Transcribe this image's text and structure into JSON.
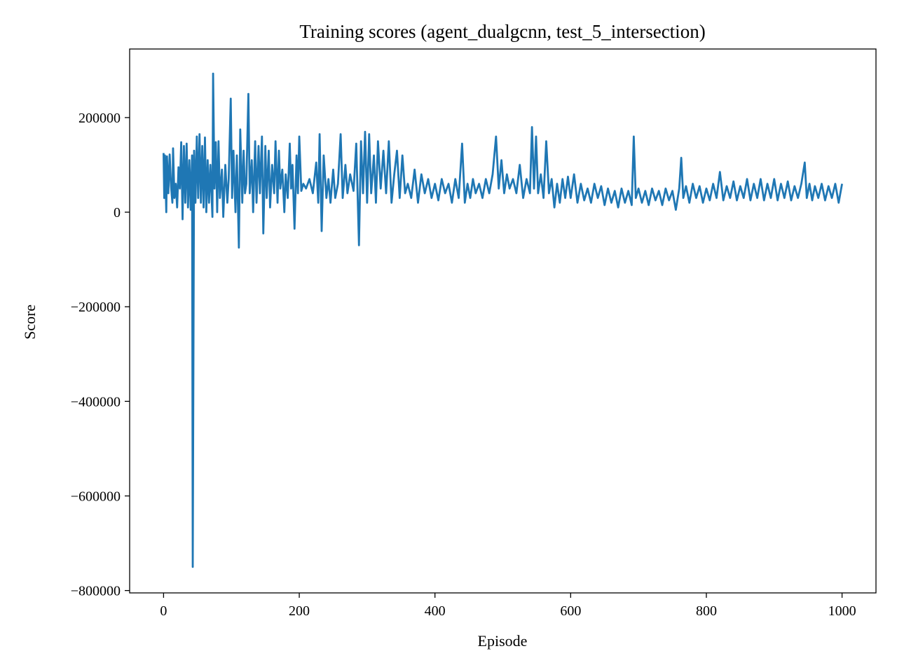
{
  "chart_data": {
    "type": "line",
    "title": "Training scores (agent_dualgcnn, test_5_intersection)",
    "xlabel": "Episode",
    "ylabel": "Score",
    "xlim": [
      -50,
      1050
    ],
    "ylim": [
      -805000,
      345000
    ],
    "x_ticks": [
      0,
      200,
      400,
      600,
      800,
      1000
    ],
    "x_tick_labels": [
      "0",
      "200",
      "400",
      "600",
      "800",
      "1000"
    ],
    "y_ticks": [
      200000,
      0,
      -200000,
      -400000,
      -600000,
      -800000
    ],
    "y_tick_labels": [
      "200000",
      "0",
      "−200000",
      "−400000",
      "−600000",
      "−800000"
    ],
    "grid": false,
    "legend": "none",
    "series": [
      {
        "color": "#1f77b4",
        "x_start": 0,
        "x_end": 1000,
        "anchor_points": [
          [
            0,
            125000
          ],
          [
            1,
            30000
          ],
          [
            2,
            120000
          ],
          [
            4,
            0
          ],
          [
            5,
            118000
          ],
          [
            7,
            40000
          ],
          [
            9,
            122000
          ],
          [
            11,
            55000
          ],
          [
            13,
            20000
          ],
          [
            14,
            135000
          ],
          [
            16,
            30000
          ],
          [
            18,
            60000
          ],
          [
            20,
            10000
          ],
          [
            22,
            95000
          ],
          [
            24,
            50000
          ],
          [
            26,
            148000
          ],
          [
            28,
            -15000
          ],
          [
            30,
            140000
          ],
          [
            32,
            20000
          ],
          [
            34,
            145000
          ],
          [
            36,
            10000
          ],
          [
            38,
            110000
          ],
          [
            40,
            5000
          ],
          [
            42,
            120000
          ],
          [
            43,
            -750000
          ],
          [
            45,
            130000
          ],
          [
            47,
            20000
          ],
          [
            49,
            160000
          ],
          [
            51,
            30000
          ],
          [
            53,
            165000
          ],
          [
            55,
            20000
          ],
          [
            57,
            140000
          ],
          [
            59,
            10000
          ],
          [
            61,
            158000
          ],
          [
            63,
            0
          ],
          [
            65,
            110000
          ],
          [
            67,
            20000
          ],
          [
            69,
            100000
          ],
          [
            72,
            -10000
          ],
          [
            73,
            293000
          ],
          [
            75,
            50000
          ],
          [
            77,
            148000
          ],
          [
            79,
            0
          ],
          [
            81,
            150000
          ],
          [
            83,
            30000
          ],
          [
            86,
            90000
          ],
          [
            88,
            -10000
          ],
          [
            91,
            100000
          ],
          [
            94,
            20000
          ],
          [
            96,
            70000
          ],
          [
            99,
            240000
          ],
          [
            101,
            30000
          ],
          [
            103,
            130000
          ],
          [
            106,
            0
          ],
          [
            108,
            120000
          ],
          [
            111,
            -75000
          ],
          [
            113,
            175000
          ],
          [
            116,
            20000
          ],
          [
            118,
            130000
          ],
          [
            120,
            40000
          ],
          [
            122,
            60000
          ],
          [
            125,
            250000
          ],
          [
            127,
            40000
          ],
          [
            130,
            110000
          ],
          [
            132,
            0
          ],
          [
            135,
            150000
          ],
          [
            137,
            20000
          ],
          [
            140,
            140000
          ],
          [
            142,
            40000
          ],
          [
            145,
            160000
          ],
          [
            147,
            -45000
          ],
          [
            150,
            140000
          ],
          [
            152,
            30000
          ],
          [
            155,
            130000
          ],
          [
            157,
            10000
          ],
          [
            160,
            100000
          ],
          [
            163,
            40000
          ],
          [
            165,
            150000
          ],
          [
            168,
            20000
          ],
          [
            170,
            130000
          ],
          [
            172,
            50000
          ],
          [
            175,
            90000
          ],
          [
            178,
            0
          ],
          [
            180,
            80000
          ],
          [
            183,
            30000
          ],
          [
            186,
            145000
          ],
          [
            188,
            50000
          ],
          [
            190,
            100000
          ],
          [
            193,
            -35000
          ],
          [
            196,
            120000
          ],
          [
            198,
            40000
          ],
          [
            200,
            160000
          ],
          [
            203,
            45000
          ],
          [
            206,
            60000
          ],
          [
            210,
            50000
          ],
          [
            215,
            70000
          ],
          [
            220,
            40000
          ],
          [
            225,
            105000
          ],
          [
            228,
            20000
          ],
          [
            230,
            165000
          ],
          [
            233,
            -40000
          ],
          [
            236,
            120000
          ],
          [
            240,
            30000
          ],
          [
            243,
            70000
          ],
          [
            246,
            20000
          ],
          [
            250,
            90000
          ],
          [
            253,
            30000
          ],
          [
            257,
            60000
          ],
          [
            261,
            165000
          ],
          [
            264,
            30000
          ],
          [
            268,
            100000
          ],
          [
            271,
            40000
          ],
          [
            275,
            80000
          ],
          [
            280,
            45000
          ],
          [
            284,
            145000
          ],
          [
            288,
            -70000
          ],
          [
            291,
            150000
          ],
          [
            294,
            40000
          ],
          [
            297,
            170000
          ],
          [
            300,
            20000
          ],
          [
            303,
            165000
          ],
          [
            306,
            40000
          ],
          [
            310,
            120000
          ],
          [
            313,
            20000
          ],
          [
            316,
            150000
          ],
          [
            320,
            50000
          ],
          [
            324,
            130000
          ],
          [
            328,
            40000
          ],
          [
            332,
            150000
          ],
          [
            336,
            20000
          ],
          [
            340,
            80000
          ],
          [
            344,
            130000
          ],
          [
            348,
            30000
          ],
          [
            352,
            120000
          ],
          [
            356,
            40000
          ],
          [
            360,
            60000
          ],
          [
            365,
            30000
          ],
          [
            370,
            90000
          ],
          [
            375,
            20000
          ],
          [
            380,
            80000
          ],
          [
            385,
            40000
          ],
          [
            390,
            70000
          ],
          [
            395,
            30000
          ],
          [
            400,
            60000
          ],
          [
            405,
            25000
          ],
          [
            410,
            70000
          ],
          [
            415,
            40000
          ],
          [
            420,
            60000
          ],
          [
            425,
            20000
          ],
          [
            430,
            70000
          ],
          [
            435,
            30000
          ],
          [
            440,
            145000
          ],
          [
            444,
            20000
          ],
          [
            448,
            60000
          ],
          [
            452,
            30000
          ],
          [
            456,
            70000
          ],
          [
            460,
            40000
          ],
          [
            465,
            60000
          ],
          [
            470,
            30000
          ],
          [
            475,
            70000
          ],
          [
            480,
            40000
          ],
          [
            485,
            80000
          ],
          [
            490,
            160000
          ],
          [
            494,
            50000
          ],
          [
            498,
            110000
          ],
          [
            502,
            40000
          ],
          [
            506,
            80000
          ],
          [
            510,
            50000
          ],
          [
            515,
            70000
          ],
          [
            520,
            40000
          ],
          [
            525,
            100000
          ],
          [
            530,
            30000
          ],
          [
            535,
            70000
          ],
          [
            540,
            40000
          ],
          [
            543,
            180000
          ],
          [
            546,
            50000
          ],
          [
            549,
            160000
          ],
          [
            552,
            40000
          ],
          [
            556,
            80000
          ],
          [
            560,
            30000
          ],
          [
            564,
            150000
          ],
          [
            568,
            40000
          ],
          [
            572,
            70000
          ],
          [
            576,
            10000
          ],
          [
            580,
            60000
          ],
          [
            584,
            20000
          ],
          [
            588,
            70000
          ],
          [
            592,
            30000
          ],
          [
            596,
            75000
          ],
          [
            600,
            30000
          ],
          [
            605,
            80000
          ],
          [
            610,
            20000
          ],
          [
            615,
            60000
          ],
          [
            620,
            25000
          ],
          [
            625,
            50000
          ],
          [
            630,
            20000
          ],
          [
            635,
            60000
          ],
          [
            640,
            30000
          ],
          [
            645,
            55000
          ],
          [
            650,
            15000
          ],
          [
            655,
            50000
          ],
          [
            660,
            20000
          ],
          [
            665,
            45000
          ],
          [
            670,
            10000
          ],
          [
            675,
            50000
          ],
          [
            680,
            20000
          ],
          [
            685,
            45000
          ],
          [
            690,
            15000
          ],
          [
            693,
            160000
          ],
          [
            696,
            30000
          ],
          [
            700,
            50000
          ],
          [
            705,
            20000
          ],
          [
            710,
            45000
          ],
          [
            715,
            15000
          ],
          [
            720,
            50000
          ],
          [
            725,
            25000
          ],
          [
            730,
            45000
          ],
          [
            735,
            15000
          ],
          [
            740,
            50000
          ],
          [
            745,
            25000
          ],
          [
            750,
            45000
          ],
          [
            755,
            5000
          ],
          [
            760,
            50000
          ],
          [
            763,
            115000
          ],
          [
            766,
            30000
          ],
          [
            770,
            55000
          ],
          [
            775,
            20000
          ],
          [
            780,
            60000
          ],
          [
            785,
            30000
          ],
          [
            790,
            55000
          ],
          [
            795,
            20000
          ],
          [
            800,
            50000
          ],
          [
            805,
            25000
          ],
          [
            810,
            60000
          ],
          [
            815,
            30000
          ],
          [
            820,
            85000
          ],
          [
            825,
            25000
          ],
          [
            830,
            55000
          ],
          [
            835,
            30000
          ],
          [
            840,
            65000
          ],
          [
            845,
            25000
          ],
          [
            850,
            55000
          ],
          [
            855,
            30000
          ],
          [
            860,
            70000
          ],
          [
            865,
            25000
          ],
          [
            870,
            60000
          ],
          [
            875,
            30000
          ],
          [
            880,
            70000
          ],
          [
            885,
            25000
          ],
          [
            890,
            60000
          ],
          [
            895,
            30000
          ],
          [
            900,
            70000
          ],
          [
            905,
            25000
          ],
          [
            910,
            60000
          ],
          [
            915,
            30000
          ],
          [
            920,
            65000
          ],
          [
            925,
            25000
          ],
          [
            930,
            55000
          ],
          [
            935,
            30000
          ],
          [
            940,
            60000
          ],
          [
            945,
            105000
          ],
          [
            948,
            30000
          ],
          [
            952,
            60000
          ],
          [
            956,
            25000
          ],
          [
            960,
            55000
          ],
          [
            965,
            30000
          ],
          [
            970,
            60000
          ],
          [
            975,
            25000
          ],
          [
            980,
            55000
          ],
          [
            985,
            30000
          ],
          [
            990,
            60000
          ],
          [
            995,
            20000
          ],
          [
            1000,
            60000
          ]
        ]
      }
    ]
  }
}
